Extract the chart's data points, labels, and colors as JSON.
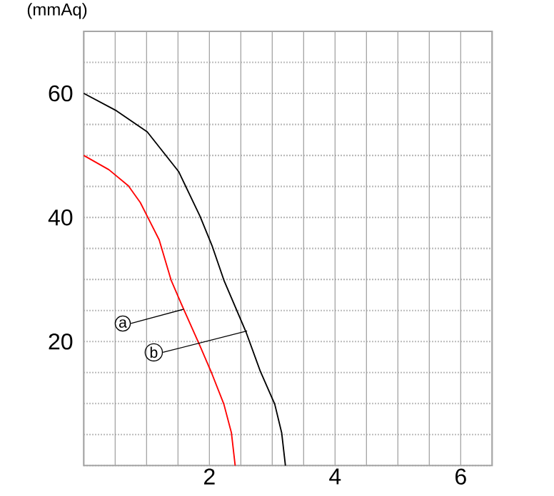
{
  "chart_data": {
    "type": "line",
    "ylabel": "(mmAq)",
    "xlim": [
      0,
      6.5
    ],
    "ylim": [
      0,
      70
    ],
    "xticks": [
      {
        "value": 0,
        "label": null
      },
      {
        "value": 0.5,
        "label": null
      },
      {
        "value": 1,
        "label": null
      },
      {
        "value": 1.5,
        "label": null
      },
      2,
      {
        "value": 2.5,
        "label": null
      },
      {
        "value": 3,
        "label": null
      },
      {
        "value": 3.5,
        "label": null
      },
      4,
      {
        "value": 4.5,
        "label": null
      },
      {
        "value": 5,
        "label": null
      },
      {
        "value": 5.5,
        "label": null
      },
      6,
      {
        "value": 6.5,
        "label": null
      }
    ],
    "yticks": [
      {
        "value": 0,
        "label": null
      },
      {
        "value": 5,
        "label": null
      },
      {
        "value": 10,
        "label": null
      },
      {
        "value": 15,
        "label": null
      },
      20,
      {
        "value": 25,
        "label": null
      },
      {
        "value": 30,
        "label": null
      },
      {
        "value": 35,
        "label": null
      },
      40,
      {
        "value": 45,
        "label": null
      },
      {
        "value": 50,
        "label": null
      },
      {
        "value": 55,
        "label": null
      },
      60,
      {
        "value": 65,
        "label": null
      },
      {
        "value": 70,
        "label": null
      }
    ],
    "grid": true,
    "marker": "none",
    "line_style": "solid",
    "series": [
      {
        "color": "#000000",
        "x": [
          0,
          0.52,
          1.01,
          1.51,
          1.85,
          2.04,
          2.23,
          2.58,
          2.81,
          3.04,
          3.15,
          3.21
        ],
        "values": [
          60,
          57.2,
          53.8,
          47.4,
          40.2,
          35.5,
          29.9,
          21.6,
          15.2,
          9.9,
          5.3,
          0
        ]
      },
      {
        "color": "#ff0000",
        "x": [
          0,
          0.4,
          0.71,
          0.9,
          1.01,
          1.2,
          1.39,
          1.59,
          1.85,
          2.04,
          2.23,
          2.35,
          2.41
        ],
        "values": [
          50,
          47.7,
          45.1,
          42.4,
          40.2,
          36.4,
          29.9,
          25.2,
          19.3,
          14.8,
          9.9,
          5.3,
          0
        ]
      }
    ],
    "annotations": [
      {
        "text": "a",
        "x": 1.59,
        "y": 25.2
      },
      {
        "text": "b",
        "x": 2.6,
        "y": 21.7
      }
    ]
  }
}
